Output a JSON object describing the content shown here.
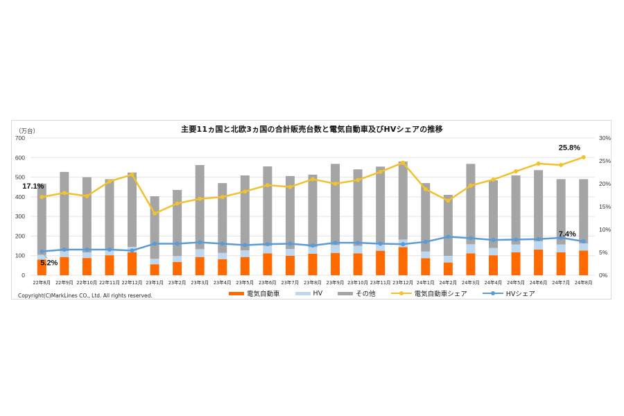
{
  "chart_data": {
    "type": "bar",
    "subtype": "stacked bar with dual-axis line overlay",
    "title": "主要11ヵ国と北欧3ヵ国の合計販売台数と電気自動車及びHVシェアの推移",
    "ylabel": "（万台）",
    "ylabel_right": "",
    "xlabel": "",
    "ylim": [
      0,
      700
    ],
    "yticks": [
      "0",
      "100",
      "200",
      "300",
      "400",
      "500",
      "600",
      "700"
    ],
    "ylim_right": [
      0,
      30
    ],
    "yticks_right": [
      "0%",
      "5%",
      "10%",
      "15%",
      "20%",
      "25%",
      "30%"
    ],
    "grid": true,
    "legend_position": "bottom",
    "categories": [
      "22年8月",
      "22年9月",
      "22年10月",
      "22年11月",
      "22年12月",
      "23年1月",
      "23年2月",
      "23年3月",
      "23年4月",
      "23年5月",
      "23年6月",
      "23年7月",
      "23年8月",
      "23年9月",
      "23年10月",
      "23年11月",
      "23年12月",
      "24年1月",
      "24年2月",
      "24年3月",
      "24年4月",
      "24年5月",
      "24年6月",
      "24年7月",
      "24年8月"
    ],
    "series": [
      {
        "name": "電気自動車",
        "type": "bar",
        "axis": "left",
        "color": "#ff6a00",
        "values": [
          80,
          93,
          88,
          102,
          117,
          56,
          68,
          93,
          82,
          93,
          112,
          99,
          110,
          114,
          112,
          125,
          143,
          87,
          65,
          112,
          102,
          117,
          131,
          117,
          126
        ]
      },
      {
        "name": "HV",
        "type": "bar",
        "axis": "left",
        "color": "#bdd7ee",
        "values": [
          24,
          30,
          28,
          28,
          28,
          28,
          30,
          40,
          32,
          34,
          38,
          35,
          33,
          40,
          38,
          38,
          39,
          34,
          34,
          46,
          37,
          40,
          42,
          40,
          36
        ]
      },
      {
        "name": "その他",
        "type": "bar",
        "axis": "left",
        "color": "#a5a5a5",
        "values": [
          363,
          404,
          384,
          360,
          379,
          319,
          337,
          429,
          356,
          382,
          405,
          372,
          370,
          414,
          390,
          391,
          398,
          349,
          311,
          410,
          346,
          352,
          363,
          333,
          328
        ]
      },
      {
        "name": "電気自動車シェア",
        "type": "line",
        "axis": "right",
        "color": "#f2c12e",
        "values": [
          17.1,
          18.0,
          17.3,
          20.5,
          22.0,
          13.5,
          15.7,
          16.7,
          17.1,
          18.3,
          19.7,
          19.3,
          21.0,
          20.0,
          20.8,
          22.6,
          24.6,
          18.8,
          16.3,
          19.6,
          20.9,
          22.7,
          24.4,
          24.1,
          25.8
        ]
      },
      {
        "name": "HVシェア",
        "type": "line",
        "axis": "right",
        "color": "#5b9bd5",
        "values": [
          5.2,
          5.6,
          5.6,
          5.6,
          5.4,
          6.9,
          6.9,
          7.2,
          6.9,
          6.6,
          6.8,
          6.9,
          6.5,
          7.1,
          7.1,
          6.9,
          6.8,
          7.3,
          8.4,
          8.1,
          7.7,
          7.8,
          7.9,
          8.2,
          7.4
        ]
      }
    ],
    "annotations": [
      {
        "text": "17.1%",
        "series": "電気自動車シェア",
        "category": "22年8月"
      },
      {
        "text": "5.2%",
        "series": "HVシェア",
        "category": "22年8月"
      },
      {
        "text": "25.8%",
        "series": "電気自動車シェア",
        "category": "24年8月"
      },
      {
        "text": "7.4%",
        "series": "HVシェア",
        "category": "24年8月"
      }
    ]
  },
  "header": {
    "title": "主要11ヵ国と北欧3ヵ国の合計販売台数と電気自動車及びHVシェアの推移",
    "unit": "（万台）"
  },
  "footer": {
    "copyright": "Copyright(C)MarkLines CO., Ltd. All rights reserved."
  },
  "legend": [
    {
      "label": "電気自動車",
      "kind": "bar",
      "color": "#ff6a00"
    },
    {
      "label": "HV",
      "kind": "bar",
      "color": "#bdd7ee"
    },
    {
      "label": "その他",
      "kind": "bar",
      "color": "#a5a5a5"
    },
    {
      "label": "電気自動車シェア",
      "kind": "line",
      "color": "#f2c12e"
    },
    {
      "label": "HVシェア",
      "kind": "line",
      "color": "#5b9bd5"
    }
  ]
}
